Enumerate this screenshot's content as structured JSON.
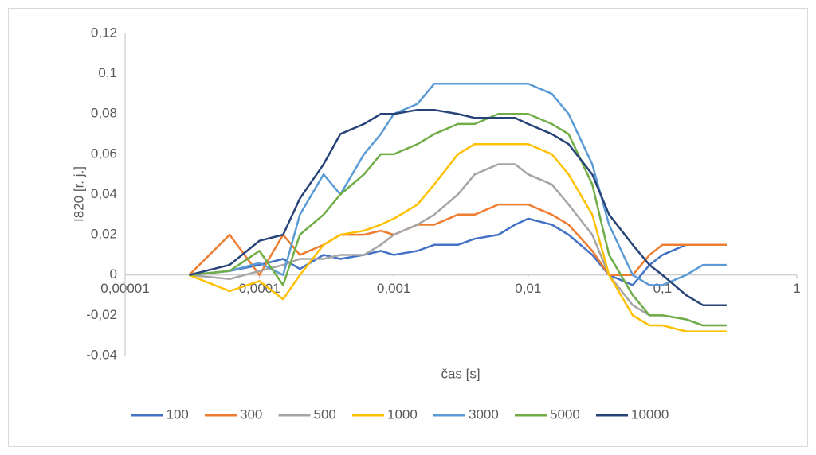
{
  "chart_data": {
    "type": "line",
    "x_label": "čas [s]",
    "y_label": "I820 [r. j.]",
    "x_log": true,
    "x": [
      3e-05,
      6e-05,
      0.0001,
      0.00015,
      0.0002,
      0.0003,
      0.0004,
      0.0006,
      0.0008,
      0.001,
      0.0015,
      0.002,
      0.003,
      0.004,
      0.006,
      0.008,
      0.01,
      0.015,
      0.02,
      0.03,
      0.04,
      0.06,
      0.08,
      0.1,
      0.15,
      0.2,
      0.3
    ],
    "series": [
      {
        "name": "100",
        "color": "#4472c4",
        "values": [
          0,
          0.002,
          0.005,
          0.008,
          0.003,
          0.01,
          0.008,
          0.01,
          0.012,
          0.01,
          0.012,
          0.015,
          0.015,
          0.018,
          0.02,
          0.025,
          0.028,
          0.025,
          0.02,
          0.01,
          0,
          -0.005,
          0.005,
          0.01,
          0.015,
          0.015,
          0.015
        ]
      },
      {
        "name": "300",
        "color": "#ed7d31",
        "values": [
          0,
          0.02,
          0,
          0.02,
          0.01,
          0.015,
          0.02,
          0.02,
          0.022,
          0.02,
          0.025,
          0.025,
          0.03,
          0.03,
          0.035,
          0.035,
          0.035,
          0.03,
          0.025,
          0.012,
          0,
          0,
          0.01,
          0.015,
          0.015,
          0.015,
          0.015
        ]
      },
      {
        "name": "500",
        "color": "#a5a5a5",
        "values": [
          0,
          -0.002,
          0.002,
          0.005,
          0.008,
          0.008,
          0.01,
          0.01,
          0.015,
          0.02,
          0.025,
          0.03,
          0.04,
          0.05,
          0.055,
          0.055,
          0.05,
          0.045,
          0.035,
          0.02,
          0,
          -0.015,
          -0.02,
          -0.02,
          -0.022,
          -0.025,
          -0.025
        ]
      },
      {
        "name": "1000",
        "color": "#ffc000",
        "values": [
          0,
          -0.008,
          -0.003,
          -0.012,
          0,
          0.015,
          0.02,
          0.022,
          0.025,
          0.028,
          0.035,
          0.045,
          0.06,
          0.065,
          0.065,
          0.065,
          0.065,
          0.06,
          0.05,
          0.03,
          0,
          -0.02,
          -0.025,
          -0.025,
          -0.028,
          -0.028,
          -0.028
        ]
      },
      {
        "name": "3000",
        "color": "#5b9bd5",
        "values": [
          0,
          0.002,
          0.006,
          0,
          0.03,
          0.05,
          0.04,
          0.06,
          0.07,
          0.08,
          0.085,
          0.095,
          0.095,
          0.095,
          0.095,
          0.095,
          0.095,
          0.09,
          0.08,
          0.055,
          0.025,
          0,
          -0.005,
          -0.005,
          0,
          0.005,
          0.005
        ]
      },
      {
        "name": "5000",
        "color": "#70ad47",
        "values": [
          0,
          0.002,
          0.012,
          -0.005,
          0.02,
          0.03,
          0.04,
          0.05,
          0.06,
          0.06,
          0.065,
          0.07,
          0.075,
          0.075,
          0.08,
          0.08,
          0.08,
          0.075,
          0.07,
          0.045,
          0.01,
          -0.01,
          -0.02,
          -0.02,
          -0.022,
          -0.025,
          -0.025
        ]
      },
      {
        "name": "10000",
        "color": "#264478",
        "values": [
          0,
          0.005,
          0.017,
          0.02,
          0.038,
          0.055,
          0.07,
          0.075,
          0.08,
          0.08,
          0.082,
          0.082,
          0.08,
          0.078,
          0.078,
          0.078,
          0.075,
          0.07,
          0.065,
          0.05,
          0.03,
          0.015,
          0.005,
          0,
          -0.01,
          -0.015,
          -0.015
        ]
      }
    ],
    "xlim": [
      1e-05,
      1
    ],
    "xticks": [
      {
        "value": 1e-05,
        "label": "0,00001"
      },
      {
        "value": 0.0001,
        "label": "0,0001"
      },
      {
        "value": 0.001,
        "label": "0,001"
      },
      {
        "value": 0.01,
        "label": "0,01"
      },
      {
        "value": 0.1,
        "label": "0,1"
      },
      1
    ],
    "ylim": [
      -0.04,
      0.12
    ],
    "yticks": [
      {
        "value": -0.04,
        "label": "-0,04"
      },
      {
        "value": -0.02,
        "label": "-0,02"
      },
      0,
      {
        "value": 0.02,
        "label": "0,02"
      },
      {
        "value": 0.04,
        "label": "0,04"
      },
      {
        "value": 0.06,
        "label": "0,06"
      },
      {
        "value": 0.08,
        "label": "0,08"
      },
      {
        "value": 0.1,
        "label": "0,1"
      },
      {
        "value": 0.12,
        "label": "0,12"
      }
    ],
    "grid": false,
    "legend": "bottom"
  }
}
